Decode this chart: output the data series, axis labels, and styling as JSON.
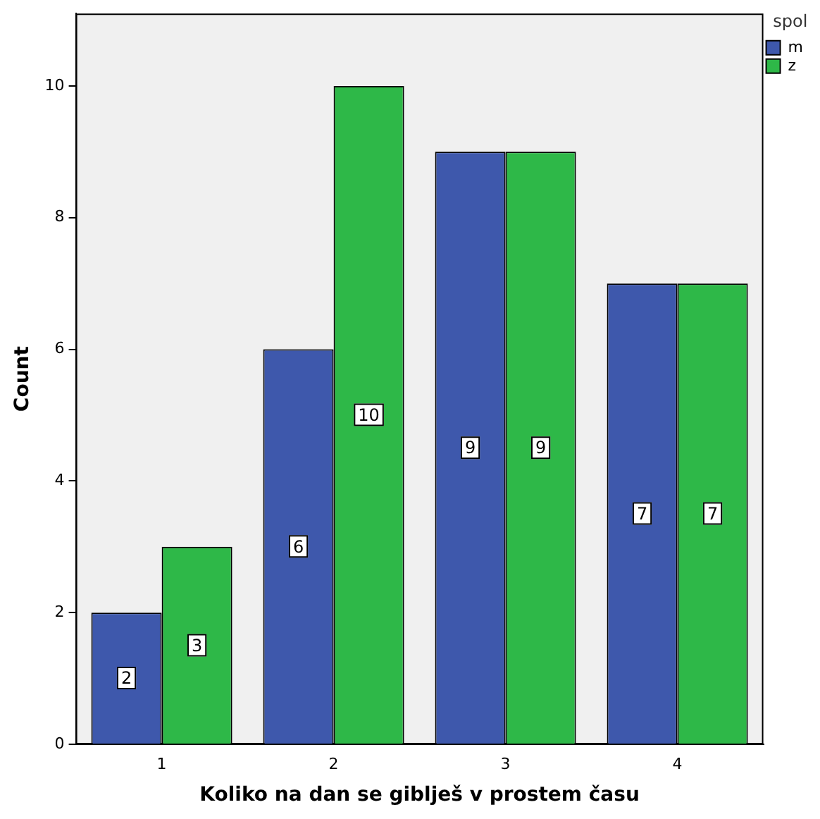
{
  "chart_data": {
    "type": "bar",
    "xlabel": "Koliko na dan se giblješ v prostem času",
    "ylabel": "Count",
    "legend_title": "spol",
    "categories": [
      "1",
      "2",
      "3",
      "4"
    ],
    "series": [
      {
        "name": "m",
        "color": "#3e58ac",
        "values": [
          2,
          6,
          9,
          7
        ]
      },
      {
        "name": "z",
        "color": "#2eb848",
        "values": [
          3,
          10,
          9,
          7
        ]
      }
    ],
    "ylim": [
      0,
      11.1
    ],
    "yticks": [
      0,
      2,
      4,
      6,
      8,
      10
    ],
    "grid": false,
    "legend": "top right",
    "data_labels": true
  }
}
